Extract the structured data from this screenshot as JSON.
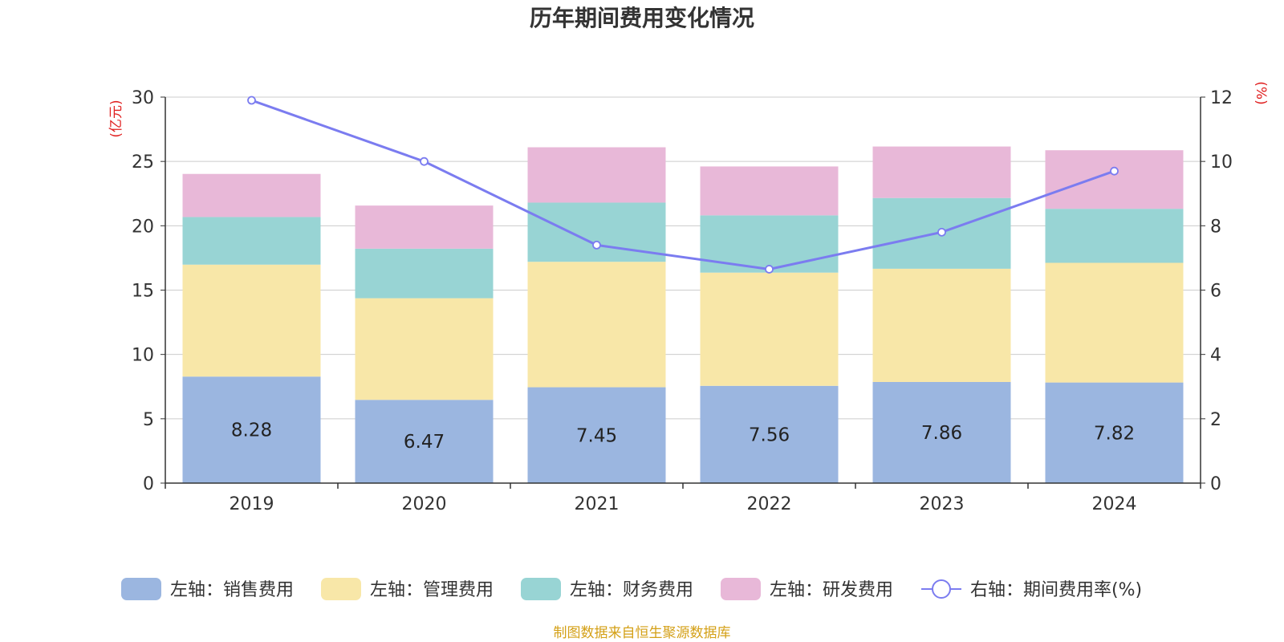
{
  "chart_data": {
    "type": "bar",
    "stacked": true,
    "title": "历年期间费用变化情况",
    "categories": [
      "2019",
      "2020",
      "2021",
      "2022",
      "2023",
      "2024"
    ],
    "left_axis": {
      "unit_label": "(亿元)",
      "ylim": [
        0,
        30
      ],
      "ticks": [
        "0",
        "5",
        "10",
        "15",
        "20",
        "25",
        "30"
      ]
    },
    "right_axis": {
      "unit_label": "(%)",
      "ylim": [
        0,
        12
      ],
      "ticks": [
        "0",
        "2",
        "4",
        "6",
        "8",
        "10",
        "12"
      ]
    },
    "series": [
      {
        "name": "左轴：销售费用",
        "axis": "left",
        "color": "#9bb6e0",
        "values": [
          8.28,
          6.47,
          7.45,
          7.56,
          7.86,
          7.82
        ],
        "labels": [
          "8.28",
          "6.47",
          "7.45",
          "7.56",
          "7.86",
          "7.82"
        ]
      },
      {
        "name": "左轴：管理费用",
        "axis": "left",
        "color": "#f8e7a8",
        "values": [
          8.7,
          7.9,
          9.75,
          8.8,
          8.8,
          9.3
        ]
      },
      {
        "name": "左轴：财务费用",
        "axis": "left",
        "color": "#98d4d4",
        "values": [
          3.7,
          3.85,
          4.6,
          4.45,
          5.5,
          4.2
        ]
      },
      {
        "name": "左轴：研发费用",
        "axis": "left",
        "color": "#e8b8d8",
        "values": [
          3.35,
          3.35,
          4.3,
          3.8,
          4.0,
          4.55
        ]
      }
    ],
    "line_series": {
      "name": "右轴：期间费用率(%)",
      "axis": "right",
      "color": "#7b7cf0",
      "values": [
        11.9,
        10.0,
        7.4,
        6.65,
        7.8,
        9.7
      ]
    },
    "legend_position": "bottom",
    "grid": true
  },
  "colors": {
    "axis_unit": "#e02020",
    "source_text": "#d4a017",
    "axis_line": "#333333",
    "grid_line": "#cccccc"
  },
  "source": "制图数据来自恒生聚源数据库"
}
